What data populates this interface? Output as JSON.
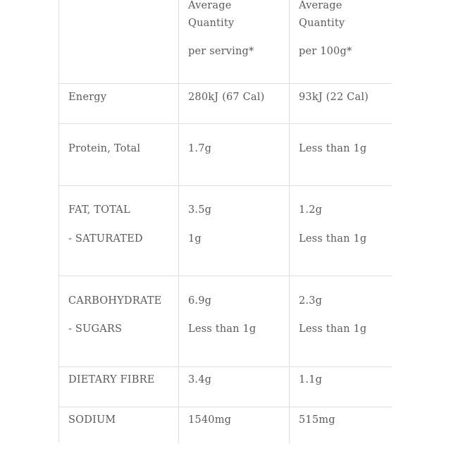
{
  "header": {
    "per_serving": [
      "Average",
      "Quantity",
      "per serving*"
    ],
    "per_100g": [
      "Average",
      "Quantity",
      "per 100g*"
    ]
  },
  "rows": [
    {
      "labels": [
        "Energy"
      ],
      "serving": [
        "280kJ (67 Cal)"
      ],
      "per100": [
        "93kJ (22 Cal)"
      ]
    },
    {
      "labels": [
        "Protein, Total"
      ],
      "serving": [
        "1.7g"
      ],
      "per100": [
        "Less than 1g"
      ]
    },
    {
      "labels": [
        "FAT, TOTAL",
        "- SATURATED"
      ],
      "serving": [
        "3.5g",
        "1g"
      ],
      "per100": [
        "1.2g",
        "Less than 1g"
      ]
    },
    {
      "labels": [
        "CARBOHYDRATE",
        "- SUGARS"
      ],
      "serving": [
        "6.9g",
        "Less than 1g"
      ],
      "per100": [
        "2.3g",
        "Less than 1g"
      ]
    },
    {
      "labels": [
        "DIETARY FIBRE"
      ],
      "serving": [
        "3.4g"
      ],
      "per100": [
        "1.1g"
      ]
    },
    {
      "labels": [
        "SODIUM"
      ],
      "serving": [
        "1540mg"
      ],
      "per100": [
        "515mg"
      ]
    }
  ]
}
